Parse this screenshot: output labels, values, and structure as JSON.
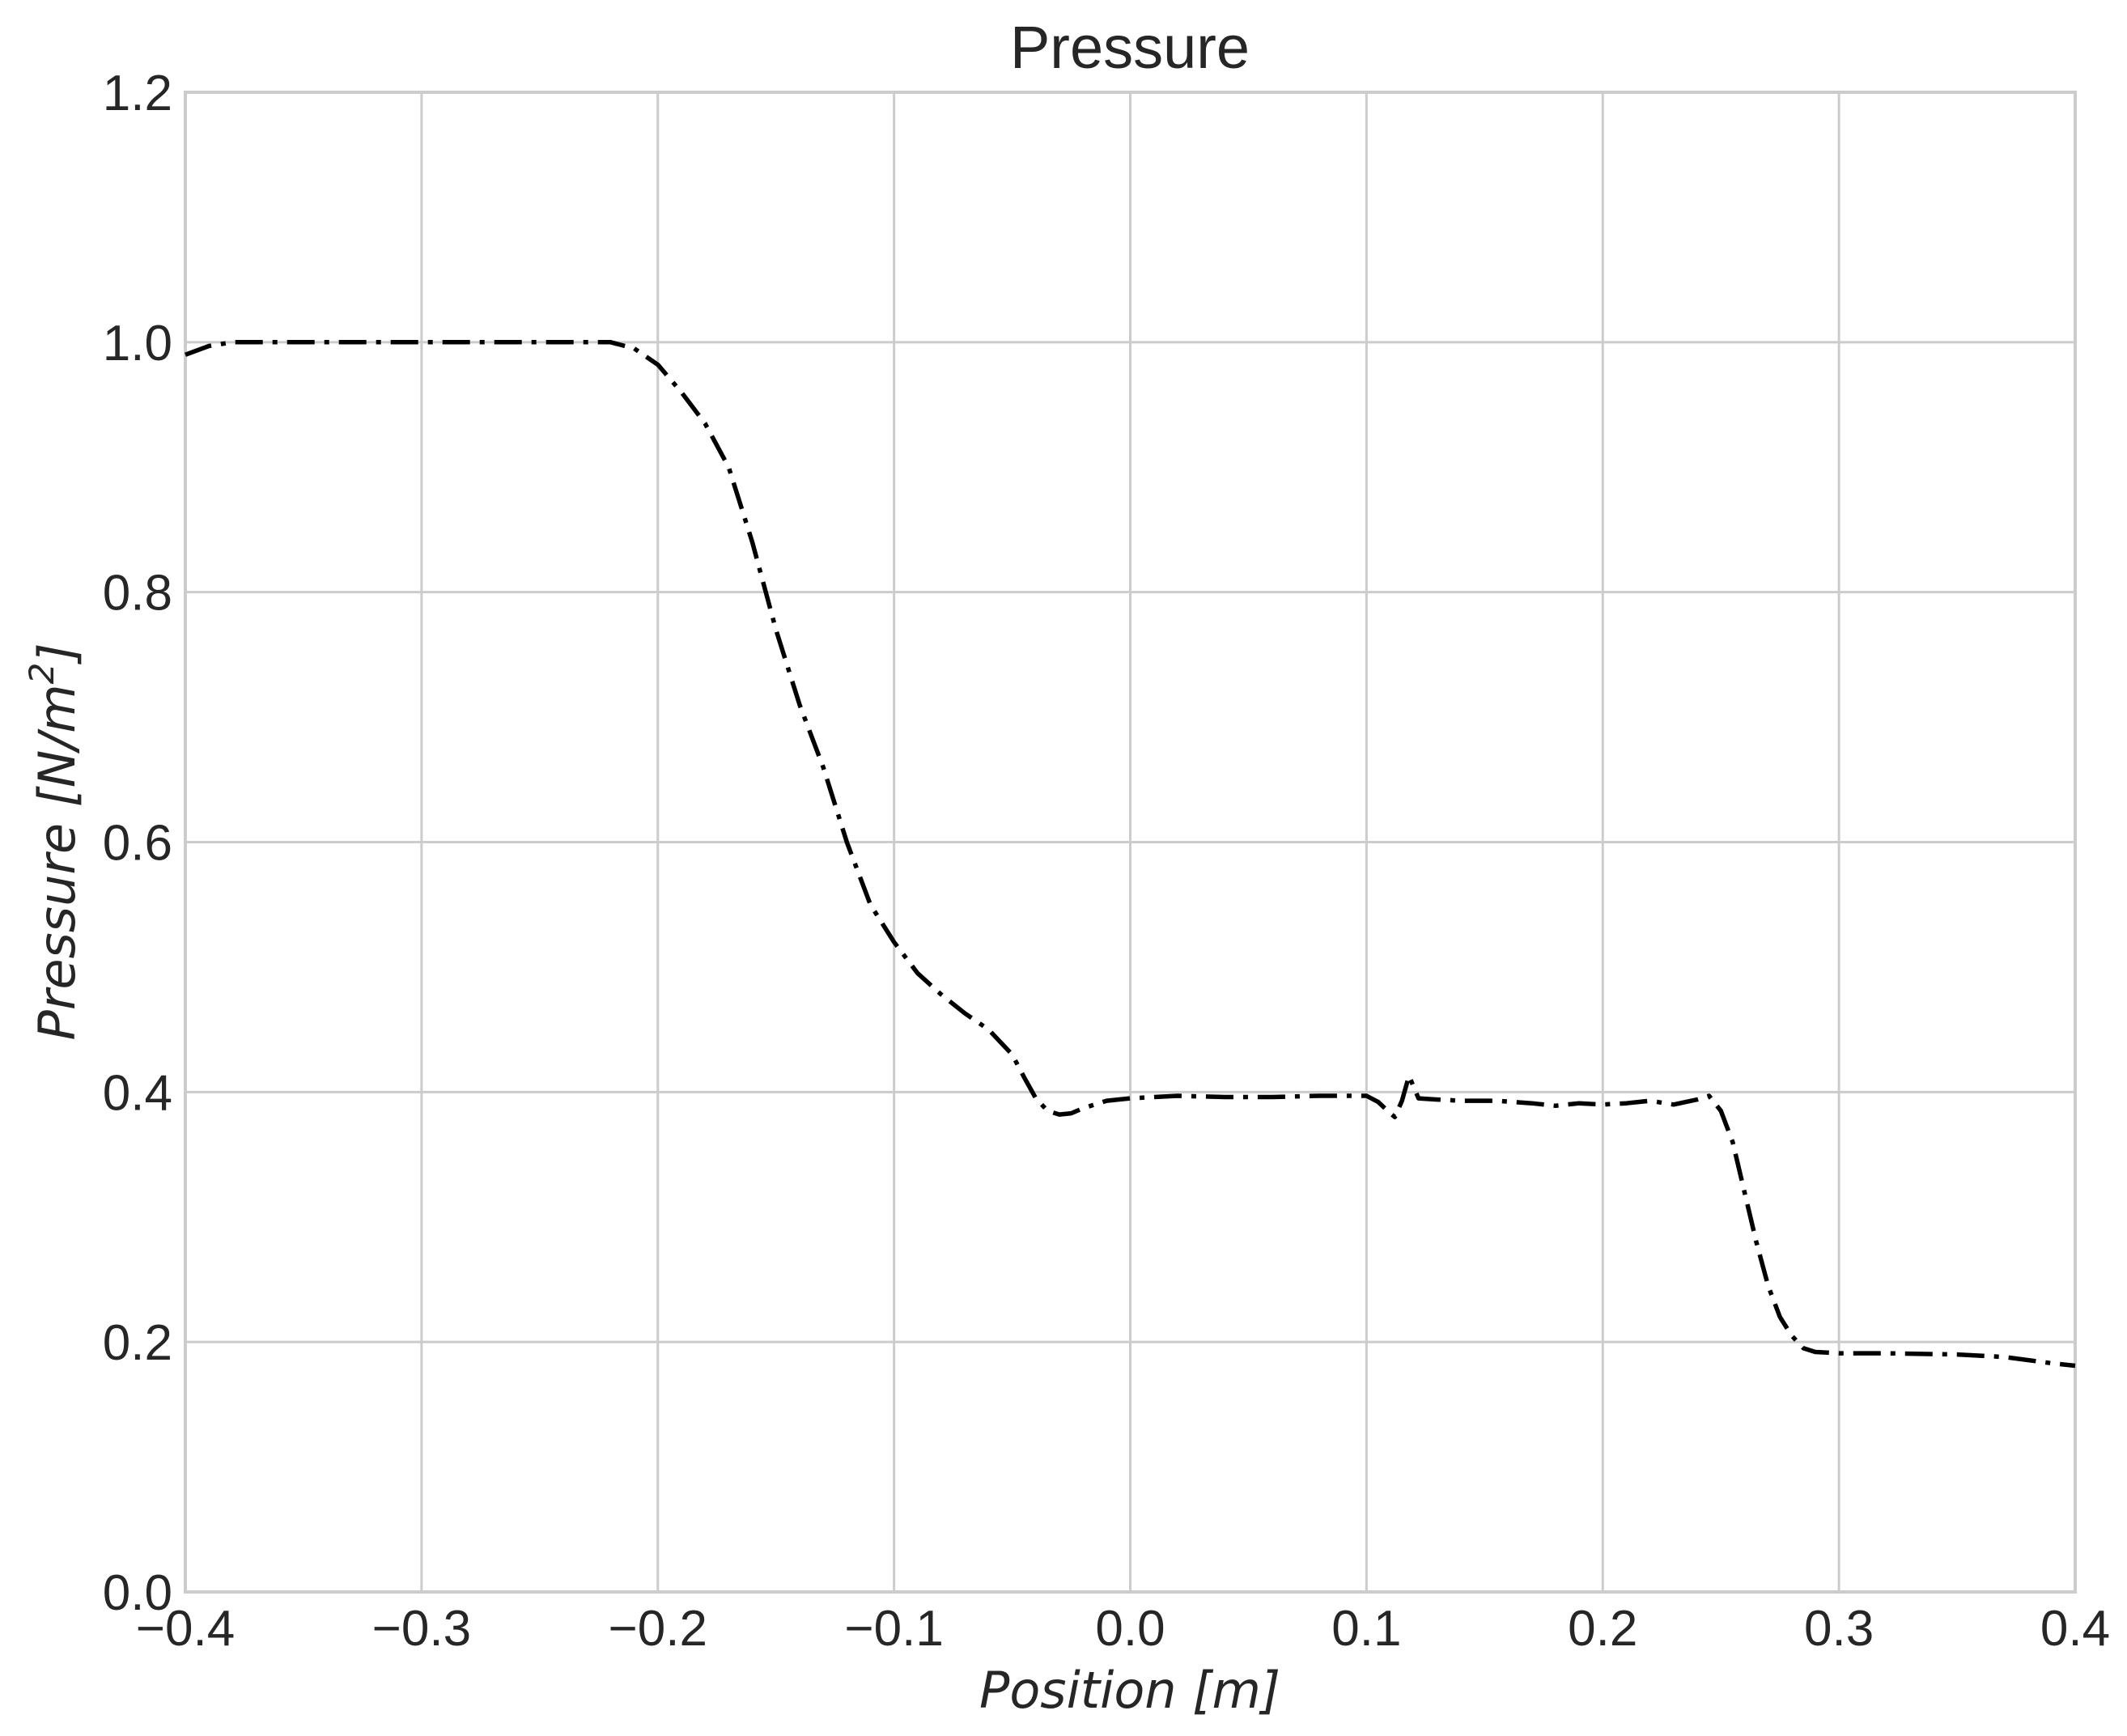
{
  "chart_data": {
    "type": "line",
    "title": "Pressure",
    "xlabel": "Position [m]",
    "ylabel_main": "Pressure [N/m",
    "ylabel_sup": "2",
    "ylabel_close": "]",
    "xlim": [
      -0.4,
      0.4
    ],
    "ylim": [
      0.0,
      1.2
    ],
    "x_ticks": [
      -0.4,
      -0.3,
      -0.2,
      -0.1,
      0.0,
      0.1,
      0.2,
      0.3,
      0.4
    ],
    "x_tick_labels": [
      "−0.4",
      "−0.3",
      "−0.2",
      "−0.1",
      "0.0",
      "0.1",
      "0.2",
      "0.3",
      "0.4"
    ],
    "y_ticks": [
      0.0,
      0.2,
      0.4,
      0.6,
      0.8,
      1.0,
      1.2
    ],
    "y_tick_labels": [
      "0.0",
      "0.2",
      "0.4",
      "0.6",
      "0.8",
      "1.0",
      "1.2"
    ],
    "grid": true,
    "line_color": "#000000",
    "line_style": "dashdot",
    "series": [
      {
        "x": [
          -0.4,
          -0.39,
          -0.38,
          -0.37,
          -0.35,
          -0.3,
          -0.25,
          -0.22,
          -0.21,
          -0.2,
          -0.19,
          -0.18,
          -0.17,
          -0.16,
          -0.15,
          -0.14,
          -0.13,
          -0.12,
          -0.11,
          -0.1,
          -0.09,
          -0.08,
          -0.07,
          -0.06,
          -0.05,
          -0.045,
          -0.04,
          -0.035,
          -0.03,
          -0.025,
          -0.02,
          -0.01,
          0.0,
          0.02,
          0.04,
          0.06,
          0.08,
          0.1,
          0.105,
          0.11,
          0.112,
          0.115,
          0.118,
          0.122,
          0.13,
          0.14,
          0.155,
          0.17,
          0.18,
          0.19,
          0.2,
          0.21,
          0.22,
          0.23,
          0.24,
          0.245,
          0.25,
          0.255,
          0.26,
          0.265,
          0.27,
          0.275,
          0.28,
          0.285,
          0.29,
          0.3,
          0.32,
          0.35,
          0.37,
          0.39,
          0.4
        ],
        "y": [
          0.99,
          0.997,
          1.0,
          1.0,
          1.0,
          1.0,
          1.0,
          1.0,
          0.995,
          0.982,
          0.96,
          0.935,
          0.9,
          0.84,
          0.77,
          0.71,
          0.66,
          0.6,
          0.55,
          0.52,
          0.495,
          0.478,
          0.463,
          0.45,
          0.43,
          0.412,
          0.395,
          0.385,
          0.382,
          0.383,
          0.387,
          0.393,
          0.395,
          0.397,
          0.396,
          0.396,
          0.397,
          0.397,
          0.392,
          0.383,
          0.38,
          0.393,
          0.413,
          0.395,
          0.394,
          0.393,
          0.393,
          0.391,
          0.389,
          0.391,
          0.39,
          0.391,
          0.393,
          0.39,
          0.394,
          0.397,
          0.385,
          0.36,
          0.32,
          0.28,
          0.245,
          0.22,
          0.205,
          0.195,
          0.192,
          0.191,
          0.191,
          0.19,
          0.188,
          0.183,
          0.181
        ]
      }
    ]
  }
}
